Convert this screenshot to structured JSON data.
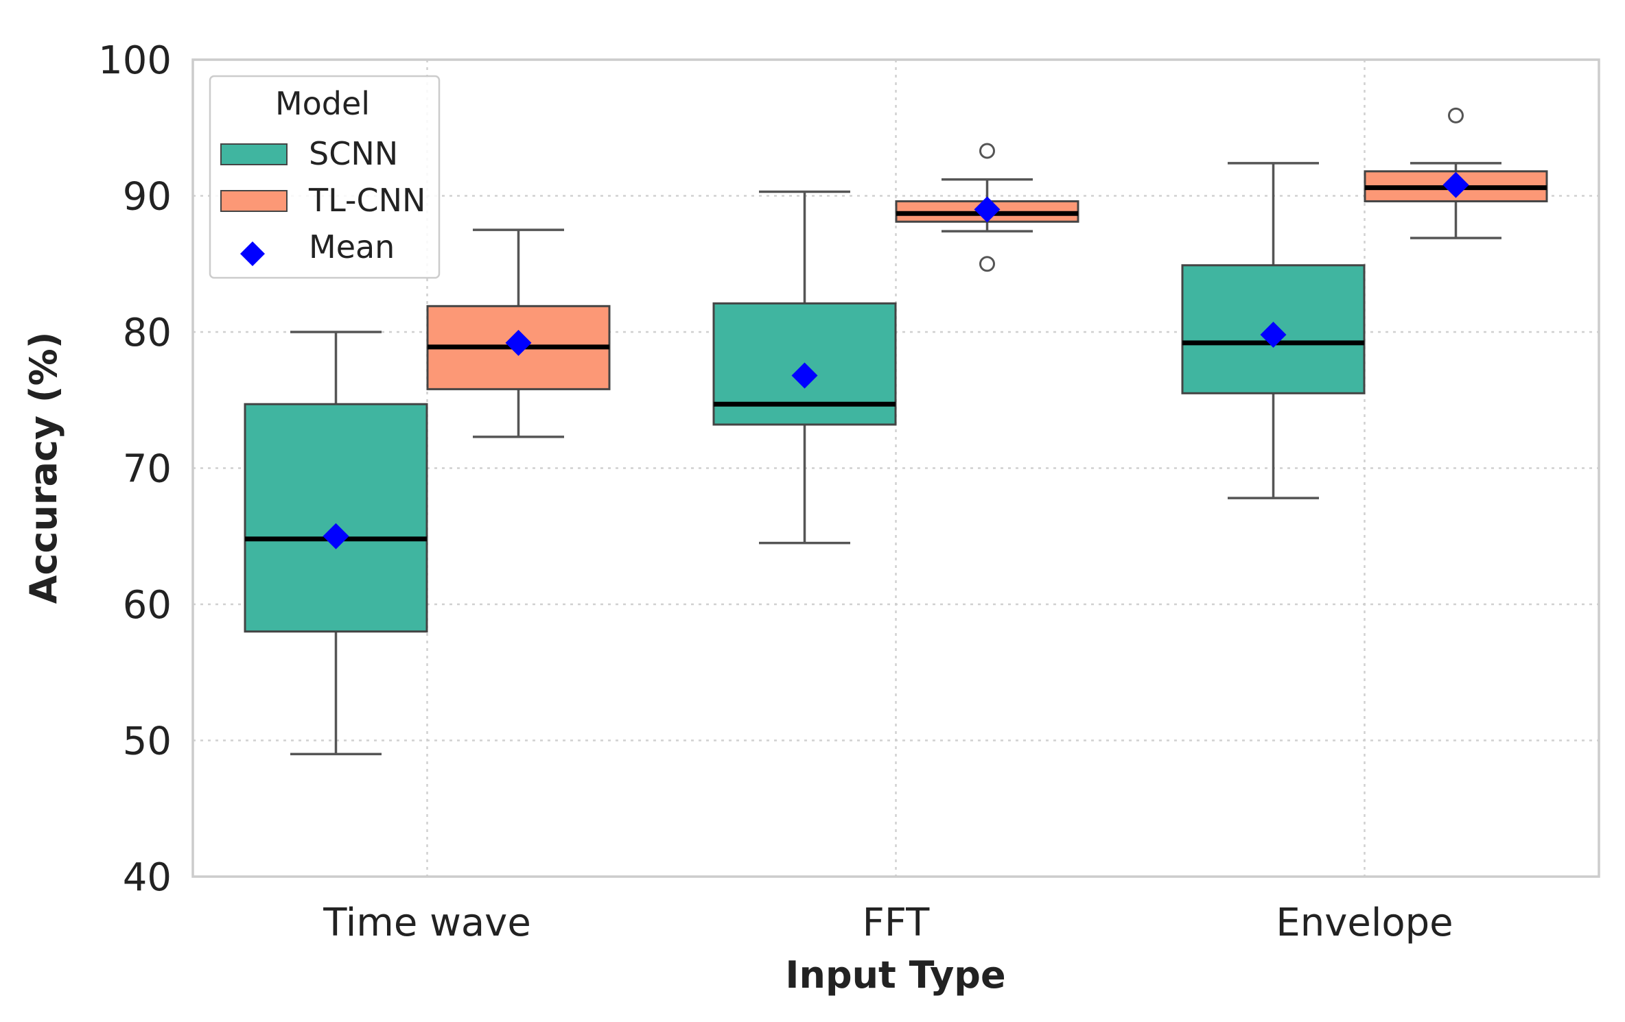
{
  "chart_data": {
    "type": "box",
    "title": "",
    "xlabel": "Input Type",
    "ylabel": "Accuracy (%)",
    "ylim": [
      40,
      100
    ],
    "yticks": [
      40,
      50,
      60,
      70,
      80,
      90,
      100
    ],
    "grid": true,
    "categories": [
      "Time wave",
      "FFT",
      "Envelope"
    ],
    "legend": {
      "title": "Model",
      "placement": "top-left",
      "mean_label": "Mean"
    },
    "series": [
      {
        "name": "SCNN",
        "color": "#40b5a0",
        "boxes": [
          {
            "whislo": 49.0,
            "q1": 58.0,
            "med": 64.8,
            "q3": 74.7,
            "whishi": 80.0,
            "mean": 65.0,
            "fliers": []
          },
          {
            "whislo": 64.5,
            "q1": 73.2,
            "med": 74.7,
            "q3": 82.1,
            "whishi": 90.3,
            "mean": 76.8,
            "fliers": []
          },
          {
            "whislo": 67.8,
            "q1": 75.5,
            "med": 79.2,
            "q3": 84.9,
            "whishi": 92.4,
            "mean": 79.8,
            "fliers": []
          }
        ]
      },
      {
        "name": "TL-CNN",
        "color": "#fc9876",
        "boxes": [
          {
            "whislo": 72.3,
            "q1": 75.8,
            "med": 78.9,
            "q3": 81.9,
            "whishi": 87.5,
            "mean": 79.2,
            "fliers": []
          },
          {
            "whislo": 87.4,
            "q1": 88.1,
            "med": 88.7,
            "q3": 89.6,
            "whishi": 91.2,
            "mean": 89.0,
            "fliers": [
              93.3,
              85.0
            ]
          },
          {
            "whislo": 86.9,
            "q1": 89.6,
            "med": 90.6,
            "q3": 91.8,
            "whishi": 92.4,
            "mean": 90.8,
            "fliers": [
              95.9
            ]
          }
        ]
      }
    ],
    "mean_marker_color": "#0000ff"
  }
}
